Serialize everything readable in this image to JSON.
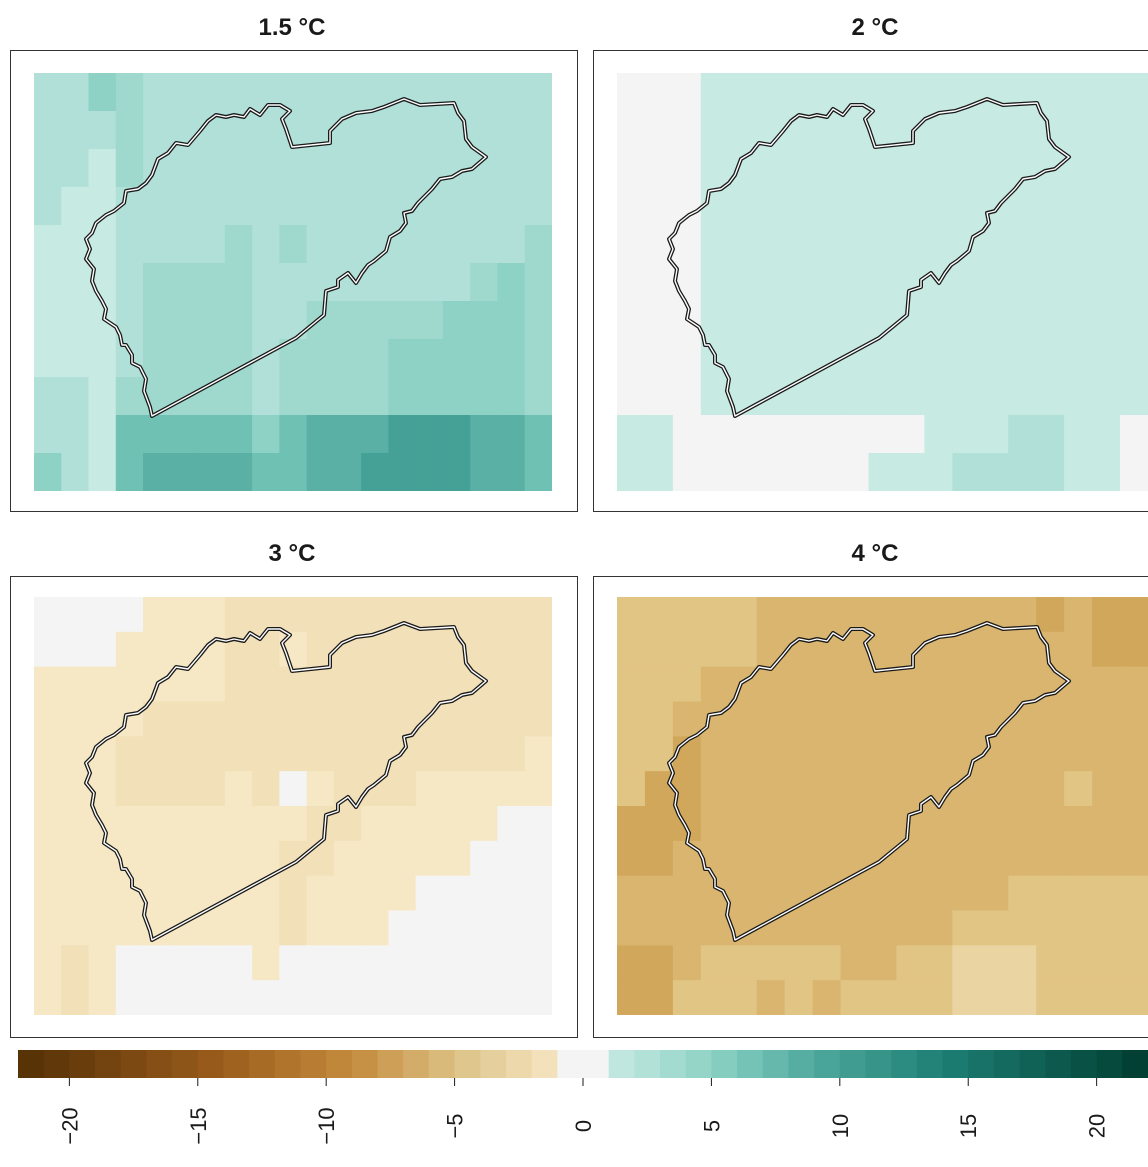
{
  "panels": [
    {
      "title": "1.5 °C",
      "grid": [
        "1 1 3 2 1 1 1 1 1 1 1 1 1 1 1 1 1 1 1",
        "1 1 1 2 1 1 1 1 1 1 1 1 1 1 1 1 1 1 1",
        "1 1 0 2 1 1 1 1 1 1 1 1 1 1 1 1 1 1 1",
        "1 0 0 1 1 1 1 1 1 1 1 1 1 1 1 1 1 1 1",
        "0 0 0 1 1 1 1 2 1 2 1 1 1 1 1 1 1 1 2",
        "0 0 0 1 2 2 2 2 1 1 1 1 1 1 1 1 2 3 2",
        "0 0 0 1 2 2 2 2 1 1 2 2 2 2 2 3 3 3 2",
        "0 0 0 1 2 2 2 2 1 2 2 2 2 3 3 3 3 3 2",
        "1 1 0 2 2 2 2 2 1 2 2 2 2 3 3 3 3 3 2",
        "1 1 0 4 4 4 4 4 3 4 5 5 5 6 6 6 5 5 4",
        "3 1 0 4 5 5 5 5 4 4 5 5 6 6 6 6 5 5 4"
      ]
    },
    {
      "title": "2 °C",
      "grid": [
        "n n n 0 0 0 0 0 0 0 0 0 0 0 0 0 0 0 0",
        "n n n 0 0 0 0 0 0 0 0 0 0 0 0 0 0 0 0",
        "n n n 0 0 0 0 0 0 0 0 0 0 0 0 0 0 0 0",
        "n n n 0 0 0 0 0 0 0 0 0 0 0 0 0 0 0 0",
        "n n n 0 0 0 0 0 0 0 0 0 0 0 0 0 0 0 0",
        "n n n 0 0 0 0 0 0 0 0 0 0 0 0 0 0 0 0",
        "n n n 0 0 0 0 0 0 0 0 0 0 0 0 0 0 0 0",
        "n n n 0 0 0 0 0 0 0 0 0 0 0 0 0 0 0 0",
        "n n n 0 0 0 0 0 0 0 0 0 0 0 0 0 0 0 0",
        "0 0 n n n n n n n n n 0 0 0 1 1 0 0 n",
        "0 0 n n n n n n n 0 0 0 1 1 1 1 0 0 n"
      ]
    },
    {
      "title": "3 °C",
      "grid": [
        "n n n n 0 0 0 1 1 1 1 1 1 1 1 1 1 1 1",
        "n n n 0 0 0 0 1 1 0 1 1 1 1 1 1 1 1 1",
        "0 0 0 0 0 0 0 1 1 1 1 1 1 1 1 1 1 1 1",
        "0 0 0 0 1 1 1 1 1 1 1 1 1 1 1 1 1 1 1",
        "0 0 0 1 1 1 1 1 1 1 1 1 1 1 1 1 1 1 0",
        "0 0 0 1 1 1 1 0 1 n 0 1 1 1 0 0 0 0 0",
        "0 0 0 0 0 0 0 0 0 0 1 1 0 0 0 0 0 n n",
        "0 0 0 0 0 0 0 0 0 1 1 0 0 0 0 0 n n n",
        "0 0 0 0 0 0 0 0 0 1 0 0 0 0 n n n n n",
        "0 0 0 0 0 0 0 0 0 1 0 0 0 n n n n n n",
        "0 1 0 n n n n n 0 n n n n n n n n n n",
        "0 1 0 n n n n n n n n n n n n n n n n"
      ]
    },
    {
      "title": "4 °C",
      "grid": [
        "4 4 4 4 4 5 5 5 5 5 5 5 5 5 5 6 5 6 6",
        "4 4 4 4 4 5 5 5 5 5 5 5 5 5 5 5 5 6 6",
        "4 4 4 5 5 5 5 5 5 5 5 5 5 5 5 5 5 5 5",
        "4 4 5 5 5 5 5 5 5 5 5 5 5 5 5 5 5 5 5",
        "4 4 6 5 5 5 5 5 5 5 5 5 5 5 5 5 5 5 5",
        "4 6 6 5 5 5 5 5 5 5 5 5 5 5 5 5 4 5 5",
        "6 6 6 5 5 5 5 5 5 5 5 5 5 5 5 5 5 5 5",
        "6 6 5 5 5 5 5 5 5 5 5 5 5 5 5 5 5 5 5",
        "5 5 5 5 5 5 5 5 5 5 5 5 5 5 4 4 4 4 4",
        "5 5 5 5 5 5 5 5 5 5 5 5 4 4 4 4 4 4 4",
        "6 6 5 4 4 4 4 4 5 5 4 4 3 3 3 4 4 4 4",
        "6 6 4 4 4 5 4 5 4 4 4 4 3 3 3 4 4 4 4"
      ]
    }
  ],
  "legend": {
    "ticks": [
      "−20",
      "−15",
      "−10",
      "−5",
      "0",
      "5",
      "10",
      "15",
      "20"
    ],
    "tick_values": [
      -20,
      -15,
      -10,
      -5,
      0,
      5,
      10,
      15,
      20
    ],
    "range": [
      -22,
      22
    ],
    "step": 1
  },
  "colors": {
    "teal_scale": [
      "#c7eae3",
      "#b0e0d8",
      "#9fd8cd",
      "#8dd2c4",
      "#6fc1b3",
      "#5ab0a4",
      "#45a096"
    ],
    "tan_scale": [
      "#f6e8c4",
      "#f1e0b8",
      "#f0dcb0",
      "#ead4a2",
      "#e1c585",
      "#d9b56f",
      "#d1a75b"
    ],
    "neutral": "#f4f4f4",
    "brown_end": "#543005",
    "teal_end": "#003c30"
  }
}
